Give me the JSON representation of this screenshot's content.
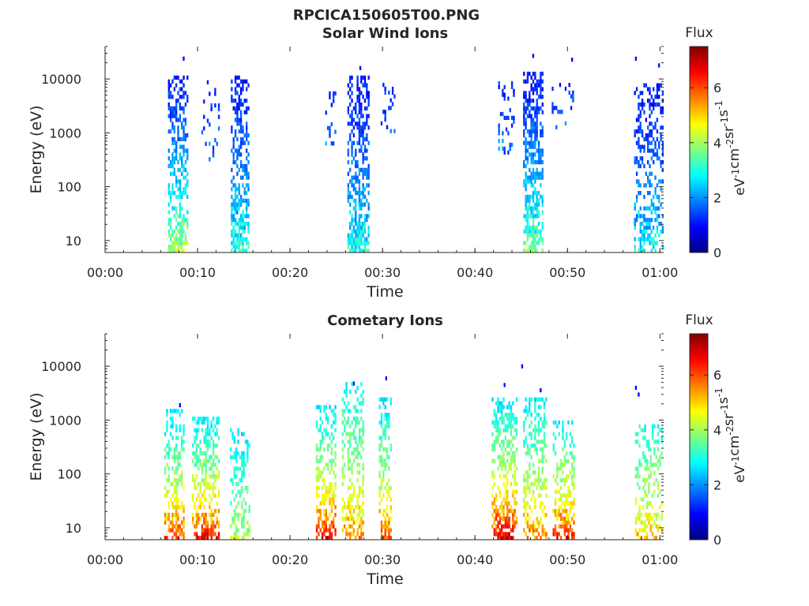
{
  "figure_title": "RPCICA150605T00.PNG",
  "colorbar": {
    "title": "Flux",
    "unit_base": [
      "eV",
      "cm",
      "sr",
      "s"
    ],
    "unit_exp": [
      "-1",
      "-2",
      "-1",
      "-1"
    ],
    "min": 0,
    "max": 7.5,
    "ticks": [
      0,
      2,
      4,
      6
    ],
    "colormap": "jet"
  },
  "chart_data": [
    {
      "type": "heatmap",
      "title": "Solar Wind Ions",
      "xlabel": "Time",
      "ylabel": "Energy (eV)",
      "x_unit": "minutes",
      "xlim": [
        0,
        60.4
      ],
      "xticks": [
        0,
        10,
        20,
        30,
        40,
        50,
        60
      ],
      "xtick_labels": [
        "00:00",
        "00:10",
        "00:20",
        "00:30",
        "00:40",
        "00:50",
        "01:00"
      ],
      "y_scale": "log",
      "ylim": [
        6,
        40000
      ],
      "yticks": [
        10,
        100,
        1000,
        10000
      ],
      "ytick_labels": [
        "10",
        "100",
        "1000",
        "10000"
      ],
      "grid": false,
      "seed": 11,
      "bursts": [
        {
          "t0": 6.8,
          "t1": 9.0,
          "emin": 6,
          "emax": 12000,
          "density": 0.55,
          "low_flux": 4.5,
          "high_flux": 1.0
        },
        {
          "t0": 10.2,
          "t1": 12.3,
          "emin": 300,
          "emax": 9000,
          "density": 0.12,
          "low_flux": 2.0,
          "high_flux": 1.1
        },
        {
          "t0": 13.6,
          "t1": 15.6,
          "emin": 6,
          "emax": 12000,
          "density": 0.55,
          "low_flux": 3.4,
          "high_flux": 1.0
        },
        {
          "t0": 23.8,
          "t1": 25.0,
          "emin": 500,
          "emax": 9000,
          "density": 0.15,
          "low_flux": 2.0,
          "high_flux": 1.1
        },
        {
          "t0": 26.2,
          "t1": 28.6,
          "emin": 6,
          "emax": 12000,
          "density": 0.62,
          "low_flux": 3.2,
          "high_flux": 1.0
        },
        {
          "t0": 29.8,
          "t1": 31.3,
          "emin": 1000,
          "emax": 9000,
          "density": 0.18,
          "low_flux": 1.8,
          "high_flux": 1.2
        },
        {
          "t0": 42.5,
          "t1": 44.3,
          "emin": 400,
          "emax": 9000,
          "density": 0.22,
          "low_flux": 1.8,
          "high_flux": 1.2
        },
        {
          "t0": 45.2,
          "t1": 47.3,
          "emin": 6,
          "emax": 14000,
          "density": 0.58,
          "low_flux": 3.9,
          "high_flux": 1.0
        },
        {
          "t0": 48.3,
          "t1": 50.7,
          "emin": 1000,
          "emax": 9000,
          "density": 0.2,
          "low_flux": 1.8,
          "high_flux": 1.2
        },
        {
          "t0": 57.2,
          "t1": 60.3,
          "emin": 6,
          "emax": 9000,
          "density": 0.4,
          "low_flux": 3.1,
          "high_flux": 1.0
        }
      ],
      "isolated_points": [
        {
          "t": 8.4,
          "e": 24000,
          "flux": 1.0
        },
        {
          "t": 46.2,
          "e": 27000,
          "flux": 1.0
        },
        {
          "t": 50.4,
          "e": 23000,
          "flux": 1.0
        },
        {
          "t": 57.3,
          "e": 24000,
          "flux": 1.0
        },
        {
          "t": 59.8,
          "e": 18000,
          "flux": 1.1
        },
        {
          "t": 27.5,
          "e": 16000,
          "flux": 1.0
        }
      ]
    },
    {
      "type": "heatmap",
      "title": "Cometary Ions",
      "xlabel": "Time",
      "ylabel": "Energy (eV)",
      "x_unit": "minutes",
      "xlim": [
        0,
        60.4
      ],
      "xticks": [
        0,
        10,
        20,
        30,
        40,
        50,
        60
      ],
      "xtick_labels": [
        "00:00",
        "00:10",
        "00:20",
        "00:30",
        "00:40",
        "00:50",
        "01:00"
      ],
      "y_scale": "log",
      "ylim": [
        6,
        40000
      ],
      "yticks": [
        10,
        100,
        1000,
        10000
      ],
      "ytick_labels": [
        "10",
        "100",
        "1000",
        "10000"
      ],
      "grid": false,
      "seed": 29,
      "bursts": [
        {
          "t0": 6.4,
          "t1": 8.6,
          "emin": 6,
          "emax": 1500,
          "density": 0.5,
          "low_flux": 6.6,
          "high_flux": 2.5
        },
        {
          "t0": 9.4,
          "t1": 12.3,
          "emin": 6,
          "emax": 1200,
          "density": 0.5,
          "low_flux": 7.0,
          "high_flux": 2.6
        },
        {
          "t0": 13.5,
          "t1": 15.6,
          "emin": 6,
          "emax": 700,
          "density": 0.4,
          "low_flux": 4.4,
          "high_flux": 2.6
        },
        {
          "t0": 22.8,
          "t1": 25.0,
          "emin": 6,
          "emax": 2000,
          "density": 0.5,
          "low_flux": 7.0,
          "high_flux": 2.6
        },
        {
          "t0": 25.6,
          "t1": 28.0,
          "emin": 6,
          "emax": 5000,
          "density": 0.45,
          "low_flux": 5.8,
          "high_flux": 2.8
        },
        {
          "t0": 29.6,
          "t1": 31.0,
          "emin": 6,
          "emax": 2500,
          "density": 0.45,
          "low_flux": 6.4,
          "high_flux": 2.6
        },
        {
          "t0": 41.8,
          "t1": 44.6,
          "emin": 6,
          "emax": 2500,
          "density": 0.5,
          "low_flux": 7.2,
          "high_flux": 2.6
        },
        {
          "t0": 45.2,
          "t1": 47.8,
          "emin": 6,
          "emax": 2500,
          "density": 0.45,
          "low_flux": 6.0,
          "high_flux": 2.7
        },
        {
          "t0": 48.4,
          "t1": 50.8,
          "emin": 6,
          "emax": 1000,
          "density": 0.45,
          "low_flux": 6.8,
          "high_flux": 2.7
        },
        {
          "t0": 57.3,
          "t1": 60.3,
          "emin": 6,
          "emax": 800,
          "density": 0.4,
          "low_flux": 5.4,
          "high_flux": 3.0
        }
      ],
      "isolated_points": [
        {
          "t": 45.0,
          "e": 10000,
          "flux": 1.0
        },
        {
          "t": 30.3,
          "e": 6000,
          "flux": 1.1
        },
        {
          "t": 26.8,
          "e": 4800,
          "flux": 1.1
        },
        {
          "t": 43.1,
          "e": 4500,
          "flux": 1.1
        },
        {
          "t": 57.3,
          "e": 4000,
          "flux": 1.0
        },
        {
          "t": 47.0,
          "e": 3600,
          "flux": 1.0
        },
        {
          "t": 57.6,
          "e": 3000,
          "flux": 1.0
        },
        {
          "t": 8.0,
          "e": 1900,
          "flux": 1.0
        }
      ]
    }
  ]
}
